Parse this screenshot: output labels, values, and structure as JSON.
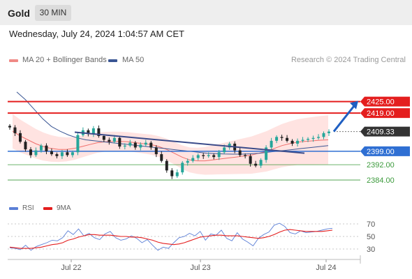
{
  "header": {
    "instrument": "Gold",
    "timeframe": "30 MIN"
  },
  "timestamp": "Wednesday, July 24, 2024 1:04:57 AM CET",
  "legend": {
    "ma20": "MA 20 + Bollinger Bands",
    "ma50": "MA 50",
    "credit": "Research © 2024 Trading Central"
  },
  "rsi_legend": {
    "rsi": "RSI",
    "ma9": "9MA"
  },
  "colors": {
    "up": "#26a69a",
    "down": "#222222",
    "ma20": "#ef6f6c",
    "bollinger": "#ffe3e1",
    "ma50": "#3a5694",
    "resistance": "#e41e1e",
    "pivot": "#2f6fd3",
    "support": "#3b9a3b",
    "trendline": "#3a4b8a",
    "arrow": "#1f5fc2"
  },
  "chart_data": [
    {
      "type": "candlestick",
      "title": "Gold 30 MIN",
      "x_ticks": [
        "Jul 22",
        "Jul 23",
        "Jul 24"
      ],
      "ylim": [
        2376,
        2438
      ],
      "resistance_levels": [
        {
          "label": "2425.00",
          "value": 2425.0
        },
        {
          "label": "2419.00",
          "value": 2419.0
        }
      ],
      "pivot": {
        "label": "2399.00",
        "value": 2399.0
      },
      "support_levels": [
        {
          "label": "2392.00",
          "value": 2392.0
        },
        {
          "label": "2384.00",
          "value": 2384.0
        }
      ],
      "last_price": {
        "label": "2409.33",
        "value": 2409.33
      },
      "close_series": [
        2411.5,
        2408.5,
        2404.0,
        2400.0,
        2397.0,
        2399.5,
        2402.0,
        2399.0,
        2397.5,
        2396.5,
        2398.5,
        2397.0,
        2398.5,
        2407.5,
        2410.0,
        2408.0,
        2411.0,
        2407.0,
        2405.0,
        2404.0,
        2406.0,
        2401.5,
        2402.0,
        2403.5,
        2401.0,
        2402.5,
        2403.5,
        2401.0,
        2397.5,
        2394.0,
        2389.0,
        2386.0,
        2388.0,
        2393.0,
        2394.0,
        2395.5,
        2397.0,
        2396.5,
        2397.0,
        2396.0,
        2398.5,
        2401.0,
        2403.0,
        2399.5,
        2397.0,
        2396.5,
        2392.5,
        2391.5,
        2394.5,
        2401.0,
        2404.5,
        2406.5,
        2406.0,
        2404.5,
        2403.0,
        2404.5,
        2405.0,
        2405.5,
        2406.0,
        2406.5,
        2408.5,
        2409.33
      ],
      "ma20_series": [
        2409.5,
        2407.0,
        2405.0,
        2403.0,
        2401.5,
        2400.5,
        2400.0,
        2400.0,
        2400.5,
        2401.5,
        2402.5,
        2403.5,
        2404.0,
        2404.2,
        2404.2,
        2404.0,
        2403.5,
        2403.0,
        2402.5,
        2401.5,
        2400.0,
        2398.0,
        2396.0,
        2394.5,
        2394.0,
        2394.0,
        2394.5,
        2395.0,
        2395.5,
        2396.0,
        2396.5,
        2397.0,
        2398.0,
        2399.0,
        2400.5,
        2402.0,
        2403.0,
        2403.8,
        2404.2,
        2404.5,
        2404.8,
        2405.0
      ],
      "ma50_series": [
        2430.0,
        2426.0,
        2421.0,
        2416.0,
        2412.0,
        2409.5,
        2407.5,
        2406.0,
        2405.0,
        2404.5,
        2404.0,
        2403.5,
        2403.0,
        2402.5,
        2402.0,
        2401.5,
        2401.0,
        2400.5,
        2400.0,
        2399.5,
        2399.0,
        2398.5,
        2398.0,
        2397.8,
        2397.6,
        2397.5,
        2397.5,
        2397.7,
        2398.0,
        2398.5,
        2399.0,
        2399.5,
        2400.0,
        2400.5,
        2401.0,
        2401.5,
        2402.0
      ],
      "trendline": [
        {
          "x": "Jul 22",
          "y": 2409.0
        },
        {
          "x": "Jul 24",
          "y": 2398.0
        }
      ],
      "projection": {
        "from": 2409.33,
        "to": 2425.0
      }
    },
    {
      "type": "line",
      "title": "RSI",
      "ylim": [
        20,
        80
      ],
      "y_ticks": [
        "70",
        "50",
        "30"
      ],
      "series": [
        {
          "name": "RSI",
          "values": [
            32,
            31,
            29,
            36,
            28,
            34,
            37,
            40,
            44,
            43,
            48,
            59,
            53,
            62,
            51,
            55,
            48,
            45,
            54,
            58,
            48,
            44,
            46,
            51,
            47,
            40,
            45,
            36,
            28,
            33,
            31,
            40,
            48,
            50,
            55,
            51,
            58,
            44,
            54,
            52,
            60,
            47,
            43,
            56,
            46,
            41,
            35,
            47,
            53,
            57,
            68,
            71,
            66,
            56,
            54,
            59,
            56,
            57,
            58,
            60,
            62,
            63
          ]
        },
        {
          "name": "9MA",
          "values": [
            33,
            32,
            31,
            31,
            31,
            32,
            33,
            35,
            37,
            38,
            40,
            44,
            46,
            49,
            51,
            53,
            53,
            52,
            52,
            52,
            51,
            50,
            50,
            49,
            49,
            48,
            46,
            44,
            41,
            39,
            38,
            37,
            38,
            40,
            43,
            46,
            49,
            50,
            51,
            52,
            52,
            51,
            51,
            51,
            50,
            49,
            48,
            47,
            48,
            50,
            53,
            57,
            60,
            61,
            60,
            59,
            58,
            58,
            58,
            58,
            59,
            60
          ]
        }
      ]
    }
  ]
}
